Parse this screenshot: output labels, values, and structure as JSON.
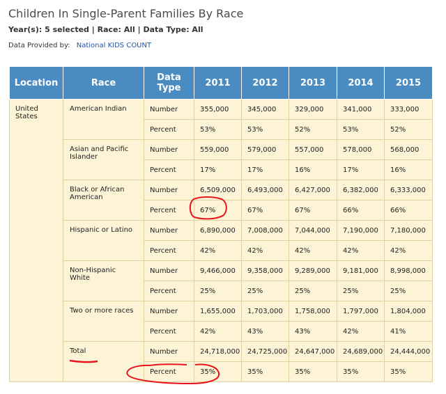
{
  "page": {
    "title": "Children In Single-Parent Families By Race",
    "subtitle": "Year(s): 5 selected | Race: All | Data Type: All",
    "provider_label": "Data Provided by:",
    "provider_link": "National KIDS COUNT"
  },
  "table": {
    "headers": [
      "Location",
      "Race",
      "Data Type",
      "2011",
      "2012",
      "2013",
      "2014",
      "2015"
    ],
    "location": "United States",
    "groups": [
      {
        "race": "American Indian",
        "rows": [
          {
            "type": "Number",
            "values": [
              "355,000",
              "345,000",
              "329,000",
              "341,000",
              "333,000"
            ]
          },
          {
            "type": "Percent",
            "values": [
              "53%",
              "53%",
              "52%",
              "53%",
              "52%"
            ]
          }
        ]
      },
      {
        "race": "Asian and Pacific Islander",
        "rows": [
          {
            "type": "Number",
            "values": [
              "559,000",
              "579,000",
              "557,000",
              "578,000",
              "568,000"
            ]
          },
          {
            "type": "Percent",
            "values": [
              "17%",
              "17%",
              "16%",
              "17%",
              "16%"
            ]
          }
        ]
      },
      {
        "race": "Black or African American",
        "rows": [
          {
            "type": "Number",
            "values": [
              "6,509,000",
              "6,493,000",
              "6,427,000",
              "6,382,000",
              "6,333,000"
            ]
          },
          {
            "type": "Percent",
            "values": [
              "67%",
              "67%",
              "67%",
              "66%",
              "66%"
            ]
          }
        ]
      },
      {
        "race": "Hispanic or Latino",
        "rows": [
          {
            "type": "Number",
            "values": [
              "6,890,000",
              "7,008,000",
              "7,044,000",
              "7,190,000",
              "7,180,000"
            ]
          },
          {
            "type": "Percent",
            "values": [
              "42%",
              "42%",
              "42%",
              "42%",
              "42%"
            ]
          }
        ]
      },
      {
        "race": "Non-Hispanic White",
        "rows": [
          {
            "type": "Number",
            "values": [
              "9,466,000",
              "9,358,000",
              "9,289,000",
              "9,181,000",
              "8,998,000"
            ]
          },
          {
            "type": "Percent",
            "values": [
              "25%",
              "25%",
              "25%",
              "25%",
              "25%"
            ]
          }
        ]
      },
      {
        "race": "Two or more races",
        "rows": [
          {
            "type": "Number",
            "values": [
              "1,655,000",
              "1,703,000",
              "1,758,000",
              "1,797,000",
              "1,804,000"
            ]
          },
          {
            "type": "Percent",
            "values": [
              "42%",
              "43%",
              "43%",
              "42%",
              "41%"
            ]
          }
        ]
      },
      {
        "race": "Total",
        "rows": [
          {
            "type": "Number",
            "values": [
              "24,718,000",
              "24,725,000",
              "24,647,000",
              "24,689,000",
              "24,444,000"
            ]
          },
          {
            "type": "Percent",
            "values": [
              "35%",
              "35%",
              "35%",
              "35%",
              "35%"
            ]
          }
        ]
      }
    ]
  },
  "colors": {
    "header_bg": "#4a8bc2",
    "cell_bg": "#fdf3d6",
    "annotation_red": "#e8141c"
  }
}
